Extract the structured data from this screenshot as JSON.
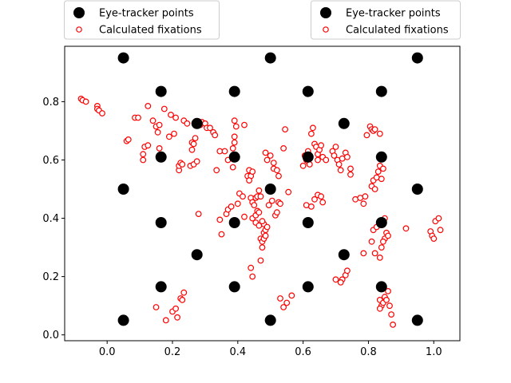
{
  "chart_data": {
    "type": "scatter",
    "title": "",
    "xlabel": "",
    "ylabel": "",
    "xlim": [
      -0.13,
      1.08
    ],
    "ylim": [
      -0.02,
      0.99
    ],
    "xticks": [
      "0.0",
      "0.2",
      "0.4",
      "0.6",
      "0.8",
      "1.0"
    ],
    "yticks": [
      "0.0",
      "0.2",
      "0.4",
      "0.6",
      "0.8"
    ],
    "grid": false,
    "legend_placement": "top, two identical legend boxes (left and right) above the axes",
    "legends": [
      {
        "entries": [
          {
            "label": "Eye-tracker points",
            "marker": "filled-circle",
            "color": "#000000"
          },
          {
            "label": "Calculated fixations",
            "marker": "hollow-circle",
            "color": "#ff0000"
          }
        ]
      },
      {
        "entries": [
          {
            "label": "Eye-tracker points",
            "marker": "filled-circle",
            "color": "#000000"
          },
          {
            "label": "Calculated fixations",
            "marker": "hollow-circle",
            "color": "#ff0000"
          }
        ]
      }
    ],
    "series": [
      {
        "name": "Eye-tracker points",
        "color": "#000000",
        "marker": "filled-circle",
        "points": [
          [
            0.05,
            0.95
          ],
          [
            0.5,
            0.95
          ],
          [
            0.95,
            0.95
          ],
          [
            0.165,
            0.835
          ],
          [
            0.39,
            0.835
          ],
          [
            0.615,
            0.835
          ],
          [
            0.84,
            0.835
          ],
          [
            0.275,
            0.725
          ],
          [
            0.725,
            0.725
          ],
          [
            0.165,
            0.61
          ],
          [
            0.39,
            0.61
          ],
          [
            0.615,
            0.61
          ],
          [
            0.84,
            0.61
          ],
          [
            0.05,
            0.5
          ],
          [
            0.5,
            0.5
          ],
          [
            0.95,
            0.5
          ],
          [
            0.165,
            0.385
          ],
          [
            0.39,
            0.385
          ],
          [
            0.615,
            0.385
          ],
          [
            0.84,
            0.385
          ],
          [
            0.275,
            0.275
          ],
          [
            0.725,
            0.275
          ],
          [
            0.165,
            0.165
          ],
          [
            0.39,
            0.165
          ],
          [
            0.615,
            0.165
          ],
          [
            0.84,
            0.165
          ],
          [
            0.05,
            0.05
          ],
          [
            0.5,
            0.05
          ],
          [
            0.95,
            0.05
          ]
        ]
      },
      {
        "name": "Calculated fixations",
        "color": "#ff0000",
        "marker": "hollow-circle",
        "points": [
          [
            -0.08,
            0.81
          ],
          [
            -0.075,
            0.805
          ],
          [
            -0.065,
            0.8
          ],
          [
            -0.03,
            0.785
          ],
          [
            -0.03,
            0.775
          ],
          [
            -0.025,
            0.77
          ],
          [
            -0.015,
            0.76
          ],
          [
            0.06,
            0.665
          ],
          [
            0.065,
            0.67
          ],
          [
            0.085,
            0.745
          ],
          [
            0.095,
            0.745
          ],
          [
            0.11,
            0.6
          ],
          [
            0.11,
            0.62
          ],
          [
            0.115,
            0.645
          ],
          [
            0.125,
            0.65
          ],
          [
            0.125,
            0.785
          ],
          [
            0.14,
            0.735
          ],
          [
            0.15,
            0.715
          ],
          [
            0.155,
            0.695
          ],
          [
            0.16,
            0.64
          ],
          [
            0.16,
            0.72
          ],
          [
            0.175,
            0.775
          ],
          [
            0.19,
            0.68
          ],
          [
            0.195,
            0.755
          ],
          [
            0.205,
            0.69
          ],
          [
            0.21,
            0.745
          ],
          [
            0.22,
            0.565
          ],
          [
            0.22,
            0.58
          ],
          [
            0.225,
            0.59
          ],
          [
            0.23,
            0.585
          ],
          [
            0.235,
            0.735
          ],
          [
            0.245,
            0.725
          ],
          [
            0.255,
            0.58
          ],
          [
            0.26,
            0.635
          ],
          [
            0.26,
            0.66
          ],
          [
            0.265,
            0.585
          ],
          [
            0.265,
            0.655
          ],
          [
            0.27,
            0.675
          ],
          [
            0.275,
            0.595
          ],
          [
            0.285,
            0.72
          ],
          [
            0.29,
            0.73
          ],
          [
            0.3,
            0.725
          ],
          [
            0.305,
            0.71
          ],
          [
            0.315,
            0.71
          ],
          [
            0.325,
            0.695
          ],
          [
            0.33,
            0.685
          ],
          [
            0.335,
            0.565
          ],
          [
            0.345,
            0.63
          ],
          [
            0.36,
            0.63
          ],
          [
            0.37,
            0.6
          ],
          [
            0.385,
            0.575
          ],
          [
            0.385,
            0.64
          ],
          [
            0.39,
            0.66
          ],
          [
            0.39,
            0.68
          ],
          [
            0.39,
            0.735
          ],
          [
            0.395,
            0.715
          ],
          [
            0.42,
            0.72
          ],
          [
            0.4,
            0.45
          ],
          [
            0.405,
            0.485
          ],
          [
            0.415,
            0.475
          ],
          [
            0.42,
            0.405
          ],
          [
            0.43,
            0.545
          ],
          [
            0.435,
            0.565
          ],
          [
            0.44,
            0.545
          ],
          [
            0.435,
            0.53
          ],
          [
            0.445,
            0.56
          ],
          [
            0.44,
            0.47
          ],
          [
            0.445,
            0.455
          ],
          [
            0.45,
            0.445
          ],
          [
            0.455,
            0.47
          ],
          [
            0.46,
            0.475
          ],
          [
            0.465,
            0.495
          ],
          [
            0.47,
            0.475
          ],
          [
            0.445,
            0.4
          ],
          [
            0.455,
            0.41
          ],
          [
            0.46,
            0.425
          ],
          [
            0.465,
            0.42
          ],
          [
            0.455,
            0.385
          ],
          [
            0.465,
            0.375
          ],
          [
            0.47,
            0.33
          ],
          [
            0.48,
            0.35
          ],
          [
            0.485,
            0.36
          ],
          [
            0.48,
            0.38
          ],
          [
            0.475,
            0.39
          ],
          [
            0.485,
            0.625
          ],
          [
            0.49,
            0.6
          ],
          [
            0.5,
            0.615
          ],
          [
            0.51,
            0.57
          ],
          [
            0.51,
            0.59
          ],
          [
            0.52,
            0.565
          ],
          [
            0.525,
            0.545
          ],
          [
            0.495,
            0.445
          ],
          [
            0.505,
            0.46
          ],
          [
            0.515,
            0.41
          ],
          [
            0.52,
            0.42
          ],
          [
            0.525,
            0.455
          ],
          [
            0.53,
            0.45
          ],
          [
            0.54,
            0.64
          ],
          [
            0.545,
            0.705
          ],
          [
            0.555,
            0.49
          ],
          [
            0.44,
            0.23
          ],
          [
            0.445,
            0.2
          ],
          [
            0.47,
            0.255
          ],
          [
            0.475,
            0.3
          ],
          [
            0.475,
            0.32
          ],
          [
            0.48,
            0.33
          ],
          [
            0.485,
            0.34
          ],
          [
            0.49,
            0.37
          ],
          [
            0.53,
            0.125
          ],
          [
            0.54,
            0.095
          ],
          [
            0.55,
            0.11
          ],
          [
            0.565,
            0.135
          ],
          [
            0.365,
            0.415
          ],
          [
            0.37,
            0.43
          ],
          [
            0.38,
            0.44
          ],
          [
            0.345,
            0.395
          ],
          [
            0.35,
            0.345
          ],
          [
            0.28,
            0.415
          ],
          [
            0.6,
            0.58
          ],
          [
            0.605,
            0.615
          ],
          [
            0.61,
            0.6
          ],
          [
            0.615,
            0.63
          ],
          [
            0.615,
            0.595
          ],
          [
            0.62,
            0.585
          ],
          [
            0.625,
            0.69
          ],
          [
            0.63,
            0.71
          ],
          [
            0.635,
            0.655
          ],
          [
            0.64,
            0.645
          ],
          [
            0.645,
            0.62
          ],
          [
            0.645,
            0.6
          ],
          [
            0.65,
            0.635
          ],
          [
            0.655,
            0.65
          ],
          [
            0.66,
            0.61
          ],
          [
            0.67,
            0.6
          ],
          [
            0.61,
            0.445
          ],
          [
            0.625,
            0.44
          ],
          [
            0.635,
            0.465
          ],
          [
            0.645,
            0.48
          ],
          [
            0.655,
            0.475
          ],
          [
            0.66,
            0.455
          ],
          [
            0.69,
            0.63
          ],
          [
            0.695,
            0.615
          ],
          [
            0.7,
            0.645
          ],
          [
            0.705,
            0.6
          ],
          [
            0.71,
            0.585
          ],
          [
            0.715,
            0.565
          ],
          [
            0.72,
            0.605
          ],
          [
            0.73,
            0.625
          ],
          [
            0.735,
            0.61
          ],
          [
            0.745,
            0.55
          ],
          [
            0.745,
            0.57
          ],
          [
            0.76,
            0.465
          ],
          [
            0.775,
            0.47
          ],
          [
            0.785,
            0.45
          ],
          [
            0.79,
            0.475
          ],
          [
            0.7,
            0.19
          ],
          [
            0.72,
            0.19
          ],
          [
            0.73,
            0.205
          ],
          [
            0.735,
            0.22
          ],
          [
            0.715,
            0.18
          ],
          [
            0.795,
            0.685
          ],
          [
            0.805,
            0.715
          ],
          [
            0.81,
            0.705
          ],
          [
            0.815,
            0.7
          ],
          [
            0.82,
            0.705
          ],
          [
            0.835,
            0.69
          ],
          [
            0.81,
            0.51
          ],
          [
            0.815,
            0.53
          ],
          [
            0.82,
            0.5
          ],
          [
            0.825,
            0.54
          ],
          [
            0.83,
            0.56
          ],
          [
            0.835,
            0.58
          ],
          [
            0.84,
            0.535
          ],
          [
            0.845,
            0.57
          ],
          [
            0.785,
            0.28
          ],
          [
            0.81,
            0.32
          ],
          [
            0.815,
            0.36
          ],
          [
            0.825,
            0.37
          ],
          [
            0.835,
            0.39
          ],
          [
            0.845,
            0.38
          ],
          [
            0.85,
            0.33
          ],
          [
            0.85,
            0.4
          ],
          [
            0.855,
            0.35
          ],
          [
            0.86,
            0.34
          ],
          [
            0.845,
            0.32
          ],
          [
            0.84,
            0.3
          ],
          [
            0.835,
            0.265
          ],
          [
            0.82,
            0.28
          ],
          [
            0.835,
            0.12
          ],
          [
            0.84,
            0.1
          ],
          [
            0.845,
            0.11
          ],
          [
            0.85,
            0.13
          ],
          [
            0.855,
            0.12
          ],
          [
            0.86,
            0.15
          ],
          [
            0.865,
            0.1
          ],
          [
            0.87,
            0.07
          ],
          [
            0.875,
            0.035
          ],
          [
            0.835,
            0.09
          ],
          [
            0.915,
            0.365
          ],
          [
            0.99,
            0.355
          ],
          [
            0.995,
            0.34
          ],
          [
            1.0,
            0.33
          ],
          [
            1.005,
            0.39
          ],
          [
            1.015,
            0.4
          ],
          [
            1.02,
            0.36
          ],
          [
            0.15,
            0.095
          ],
          [
            0.18,
            0.05
          ],
          [
            0.2,
            0.08
          ],
          [
            0.21,
            0.09
          ],
          [
            0.215,
            0.06
          ],
          [
            0.225,
            0.125
          ],
          [
            0.23,
            0.12
          ],
          [
            0.235,
            0.145
          ]
        ]
      }
    ]
  }
}
